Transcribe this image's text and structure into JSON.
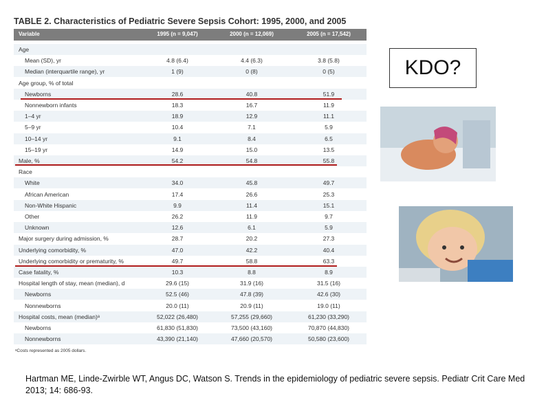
{
  "table": {
    "title": "TABLE 2. Characteristics of Pediatric Severe Sepsis Cohort: 1995, 2000, and 2005",
    "headers": [
      "Variable",
      "1995 (n = 9,047)",
      "2000 (n = 12,069)",
      "2005 (n = 17,542)"
    ],
    "groups": [
      {
        "label": "Age",
        "rows": [
          [
            "Mean (SD), yr",
            "4.8 (6.4)",
            "4.4 (6.3)",
            "3.8 (5.8)"
          ],
          [
            "Median (interquartile range), yr",
            "1 (9)",
            "0 (8)",
            "0 (5)"
          ]
        ]
      },
      {
        "label": "Age group, % of total",
        "rows": [
          [
            "Newborns",
            "28.6",
            "40.8",
            "51.9"
          ],
          [
            "Nonnewborn infants",
            "18.3",
            "16.7",
            "11.9"
          ],
          [
            "1–4 yr",
            "18.9",
            "12.9",
            "11.1"
          ],
          [
            "5–9 yr",
            "10.4",
            "7.1",
            "5.9"
          ],
          [
            "10–14 yr",
            "9.1",
            "8.4",
            "6.5"
          ],
          [
            "15–19 yr",
            "14.9",
            "15.0",
            "13.5"
          ]
        ]
      },
      {
        "label": "Male, %",
        "values": [
          "54.2",
          "54.8",
          "55.8"
        ]
      },
      {
        "label": "Race",
        "rows": [
          [
            "White",
            "34.0",
            "45.8",
            "49.7"
          ],
          [
            "African American",
            "17.4",
            "26.6",
            "25.3"
          ],
          [
            "Non-White Hispanic",
            "9.9",
            "11.4",
            "15.1"
          ],
          [
            "Other",
            "26.2",
            "11.9",
            "9.7"
          ],
          [
            "Unknown",
            "12.6",
            "6.1",
            "5.9"
          ]
        ]
      },
      {
        "label": "Major surgery during admission, %",
        "values": [
          "28.7",
          "20.2",
          "27.3"
        ]
      },
      {
        "label": "Underlying comorbidity, %",
        "values": [
          "47.0",
          "42.2",
          "40.4"
        ]
      },
      {
        "label": "Underlying comorbidity or prematurity, %",
        "values": [
          "49.7",
          "58.8",
          "63.3"
        ]
      },
      {
        "label": "Case fatality, %",
        "values": [
          "10.3",
          "8.8",
          "8.9"
        ]
      },
      {
        "label": "Hospital length of stay, mean (median), d",
        "values": [
          "29.6 (15)",
          "31.9 (16)",
          "31.5 (16)"
        ],
        "rows": [
          [
            "Newborns",
            "52.5 (46)",
            "47.8 (39)",
            "42.6 (30)"
          ],
          [
            "Nonnewborns",
            "20.0 (11)",
            "20.9 (11)",
            "19.0 (11)"
          ]
        ]
      },
      {
        "label": "Hospital costs, mean (median)ᵃ",
        "values": [
          "52,022 (26,480)",
          "57,255 (29,660)",
          "61,230 (33,290)"
        ],
        "rows": [
          [
            "Newborns",
            "61,830 (51,830)",
            "73,500 (43,160)",
            "70,870 (44,830)"
          ],
          [
            "Nonnewborns",
            "43,390 (21,140)",
            "47,660 (20,570)",
            "50,580 (23,600)"
          ]
        ]
      }
    ],
    "footnote": "ᵃCosts represented as 2005 dollars."
  },
  "callout": "KDO?",
  "citation": "Hartman ME, Linde-Zwirble WT, Angus DC, Watson S. Trends in the epidemiology of pediatric severe sepsis. Pediatr Crit Care Med 2013; 14: 686-93."
}
